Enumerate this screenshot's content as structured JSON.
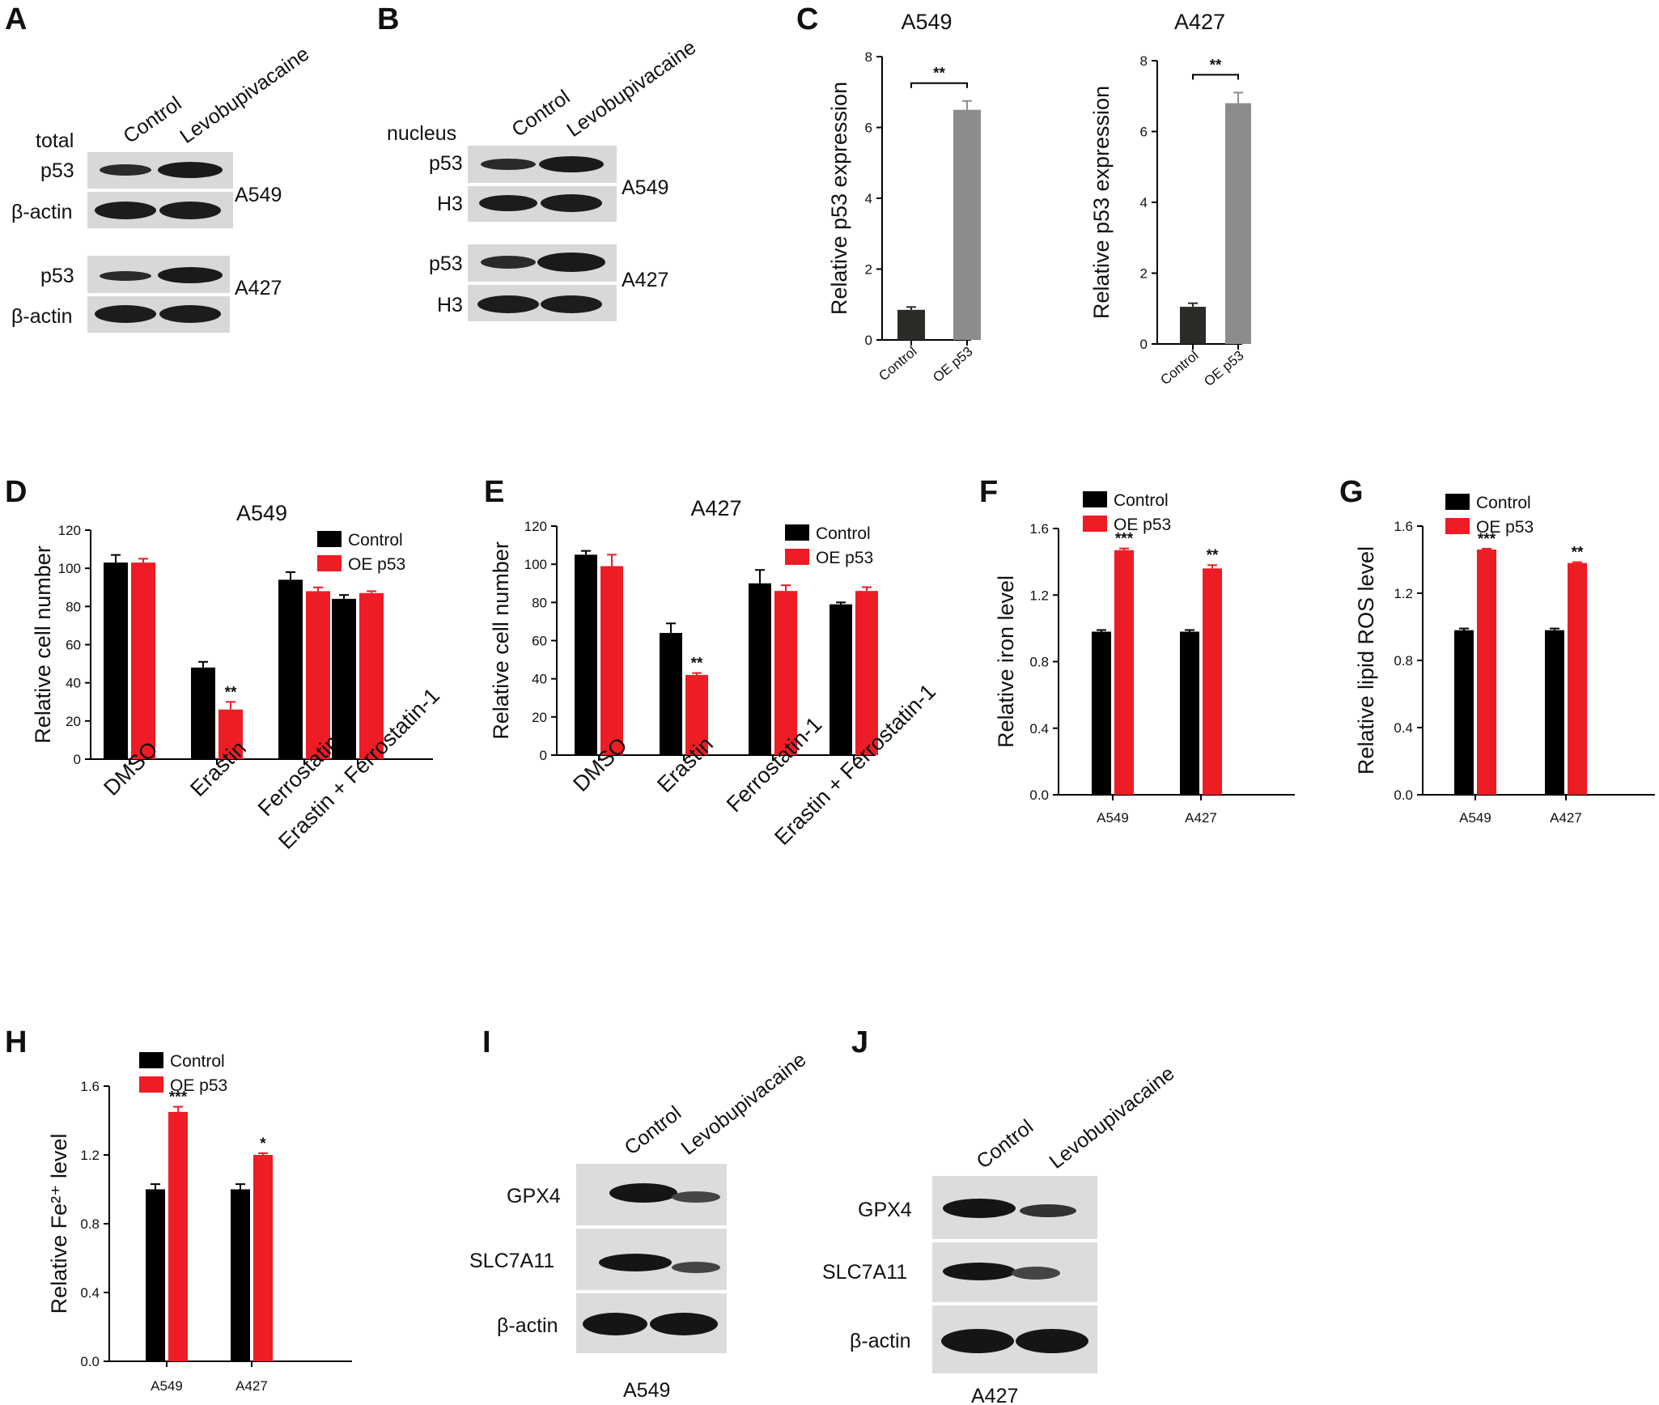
{
  "colors": {
    "control": "#000000",
    "oe": "#ee1c25",
    "control_qpcr": "#2d2b28",
    "oe_qpcr": "#8c8c8c",
    "blot_bg": "#d6d6d6",
    "band": "#1c1c1c"
  },
  "panels": {
    "A": {
      "letter": "A",
      "cols": [
        "Control",
        "Levobupivacaine"
      ],
      "header": "total",
      "rows1": [
        "p53",
        "β-actin"
      ],
      "cell1": "A549",
      "rows2": [
        "p53",
        "β-actin"
      ],
      "cell2": "A427"
    },
    "B": {
      "letter": "B",
      "cols": [
        "Control",
        "Levobupivacaine"
      ],
      "header": "nucleus",
      "rows1": [
        "p53",
        "H3"
      ],
      "cell1": "A549",
      "rows2": [
        "p53",
        "H3"
      ],
      "cell2": "A427"
    },
    "I": {
      "letter": "I",
      "cols": [
        "Control",
        "Levobupivacaine"
      ],
      "rows": [
        "GPX4",
        "SLC7A11",
        "β-actin"
      ],
      "cell": "A549"
    },
    "J": {
      "letter": "J",
      "cols": [
        "Control",
        "Levobupivacaine"
      ],
      "rows": [
        "GPX4",
        "SLC7A11",
        "β-actin"
      ],
      "cell": "A427"
    },
    "C": {
      "letter": "C"
    },
    "D": {
      "letter": "D"
    },
    "E": {
      "letter": "E"
    },
    "F": {
      "letter": "F"
    },
    "G": {
      "letter": "G"
    },
    "H": {
      "letter": "H"
    }
  },
  "chart_data": [
    {
      "id": "C1",
      "type": "bar",
      "title": "A549",
      "ylabel": "Relative p53 expression",
      "categories": [
        "Control",
        "OE p53"
      ],
      "values": [
        0.85,
        6.5
      ],
      "errors": [
        0.08,
        0.25
      ],
      "ylim": [
        0,
        8
      ],
      "yticks": [
        "0",
        "2",
        "4",
        "6",
        "8"
      ],
      "sig": [
        {
          "text": "**",
          "bracket": true
        }
      ]
    },
    {
      "id": "C2",
      "type": "bar",
      "title": "A427",
      "ylabel": "Relative p53 expression",
      "categories": [
        "Control",
        "OE p53"
      ],
      "values": [
        1.05,
        6.8
      ],
      "errors": [
        0.1,
        0.3
      ],
      "ylim": [
        0,
        8
      ],
      "yticks": [
        "0",
        "2",
        "4",
        "6",
        "8"
      ],
      "sig": [
        {
          "text": "**",
          "bracket": true
        }
      ]
    },
    {
      "id": "D",
      "type": "bar",
      "title": "A549",
      "ylabel": "Relative cell number",
      "categories": [
        "DMSO",
        "Erastin",
        "Ferrostatin-1",
        "Erastin + Ferrostatin-1"
      ],
      "series": [
        {
          "name": "Control",
          "values": [
            103,
            48,
            94,
            84
          ],
          "errors": [
            4,
            3,
            4,
            2
          ]
        },
        {
          "name": "OE p53",
          "values": [
            103,
            26,
            88,
            87
          ],
          "errors": [
            2,
            4,
            2,
            1
          ]
        }
      ],
      "ylim": [
        0,
        120
      ],
      "yticks": [
        "0",
        "20",
        "40",
        "60",
        "80",
        "100",
        "120"
      ],
      "sig": [
        {
          "category": 1,
          "series": 1,
          "text": "**"
        }
      ]
    },
    {
      "id": "E",
      "type": "bar",
      "title": "A427",
      "ylabel": "Relative cell number",
      "categories": [
        "DMSO",
        "Erastin",
        "Ferrostatin-1",
        "Erastin + Ferrostatin-1"
      ],
      "series": [
        {
          "name": "Control",
          "values": [
            105,
            64,
            90,
            79
          ],
          "errors": [
            2,
            5,
            7,
            1
          ]
        },
        {
          "name": "OE p53",
          "values": [
            99,
            42,
            86,
            86
          ],
          "errors": [
            6,
            1,
            3,
            2
          ]
        }
      ],
      "ylim": [
        0,
        120
      ],
      "yticks": [
        "0",
        "20",
        "40",
        "60",
        "80",
        "100",
        "120"
      ],
      "sig": [
        {
          "category": 1,
          "series": 1,
          "text": "**"
        }
      ]
    },
    {
      "id": "F",
      "type": "bar",
      "title": "",
      "ylabel": "Relative iron level",
      "categories": [
        "A549",
        "A427"
      ],
      "series": [
        {
          "name": "Control",
          "values": [
            0.98,
            0.98
          ],
          "errors": [
            0.01,
            0.01
          ]
        },
        {
          "name": "OE p53",
          "values": [
            1.47,
            1.36
          ],
          "errors": [
            0.01,
            0.02
          ]
        }
      ],
      "ylim": [
        0,
        1.6
      ],
      "yticks": [
        "0.0",
        "0.4",
        "0.8",
        "1.2",
        "1.6"
      ],
      "sig": [
        {
          "category": 0,
          "series": 1,
          "text": "***"
        },
        {
          "category": 1,
          "series": 1,
          "text": "**"
        }
      ]
    },
    {
      "id": "G",
      "type": "bar",
      "title": "",
      "ylabel": "Relative lipid ROS level",
      "categories": [
        "A549",
        "A427"
      ],
      "series": [
        {
          "name": "Control",
          "values": [
            0.98,
            0.98
          ],
          "errors": [
            0.01,
            0.01
          ]
        },
        {
          "name": "OE p53",
          "values": [
            1.46,
            1.38
          ],
          "errors": [
            0.005,
            0.005
          ]
        }
      ],
      "ylim": [
        0,
        1.6
      ],
      "yticks": [
        "0.0",
        "0.4",
        "0.8",
        "1.2",
        "1.6"
      ],
      "sig": [
        {
          "category": 0,
          "series": 1,
          "text": "***"
        },
        {
          "category": 1,
          "series": 1,
          "text": "**"
        }
      ]
    },
    {
      "id": "H",
      "type": "bar",
      "title": "",
      "ylabel": "Relative Fe²⁺ level",
      "categories": [
        "A549",
        "A427"
      ],
      "series": [
        {
          "name": "Control",
          "values": [
            1.0,
            1.0
          ],
          "errors": [
            0.03,
            0.03
          ]
        },
        {
          "name": "OE p53",
          "values": [
            1.45,
            1.2
          ],
          "errors": [
            0.03,
            0.01
          ]
        }
      ],
      "ylim": [
        0,
        1.6
      ],
      "yticks": [
        "0.0",
        "0.4",
        "0.8",
        "1.2",
        "1.6"
      ],
      "sig": [
        {
          "category": 0,
          "series": 1,
          "text": "***"
        },
        {
          "category": 1,
          "series": 1,
          "text": "*"
        }
      ]
    }
  ]
}
